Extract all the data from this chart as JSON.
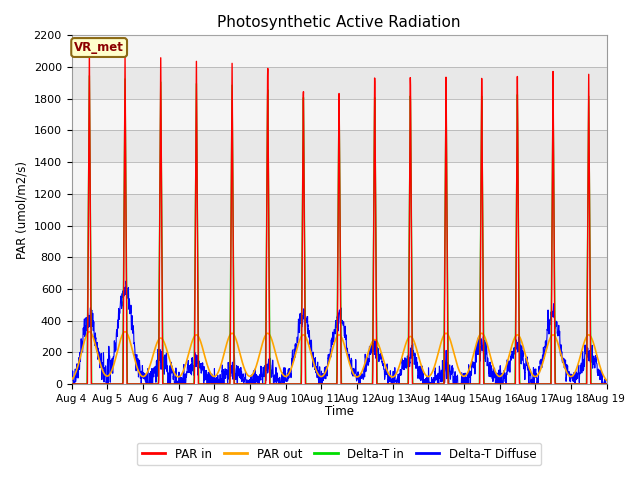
{
  "title": "Photosynthetic Active Radiation",
  "ylabel": "PAR (umol/m2/s)",
  "xlabel": "Time",
  "annotation": "VR_met",
  "x_tick_labels": [
    "Aug 4",
    "Aug 5",
    "Aug 6",
    "Aug 7",
    "Aug 8",
    "Aug 9",
    "Aug 10",
    "Aug 11",
    "Aug 12",
    "Aug 13",
    "Aug 14",
    "Aug 15",
    "Aug 16",
    "Aug 17",
    "Aug 18",
    "Aug 19"
  ],
  "ylim": [
    0,
    2200
  ],
  "line_colors": {
    "par_in": "#ff0000",
    "par_out": "#ffa500",
    "delta_t_in": "#00dd00",
    "delta_t_diffuse": "#0000ff"
  },
  "legend_labels": [
    "PAR in",
    "PAR out",
    "Delta-T in",
    "Delta-T Diffuse"
  ],
  "background_color": "#e8e8e8",
  "band_color": "#f0f0f0",
  "title_fontsize": 11,
  "num_days": 15,
  "par_in_peaks": [
    2090,
    2080,
    2090,
    2080,
    2080,
    2060,
    1920,
    1920,
    2010,
    2000,
    1990,
    1970,
    1970,
    1990,
    1960
  ],
  "par_out_peaks": [
    330,
    330,
    290,
    310,
    320,
    320,
    310,
    310,
    280,
    300,
    320,
    320,
    310,
    310,
    310
  ],
  "delta_t_in_peaks": [
    1950,
    1940,
    1930,
    1930,
    1930,
    1910,
    1870,
    1840,
    1870,
    1870,
    1860,
    1850,
    1850,
    1860,
    1820
  ],
  "delta_t_diffuse_peaks": [
    420,
    600,
    150,
    140,
    100,
    90,
    420,
    430,
    230,
    190,
    90,
    250,
    220,
    430,
    200
  ],
  "delta_t_diffuse_noise_amp": [
    80,
    60,
    80,
    70,
    60,
    60,
    60,
    50,
    50,
    60,
    60,
    70,
    60,
    50,
    60
  ]
}
